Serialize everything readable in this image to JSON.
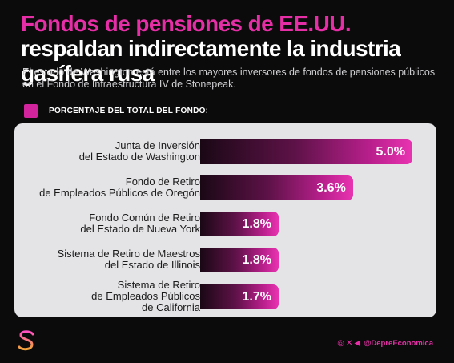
{
  "header": {
    "title_highlight": "Fondos de pensiones de EE.UU.",
    "title_rest": " respaldan indirectamente la industria gasífera rusa",
    "subtitle": "El estado de Washington está entre los mayores inversores de fondos de pensiones públicos en el Fondo de Infraestructura IV de Stonepeak."
  },
  "legend": {
    "label": "PORCENTAJE DEL TOTAL DEL FONDO:",
    "color": "#d2249d"
  },
  "chart_data": {
    "type": "bar",
    "orientation": "horizontal",
    "categories": [
      "Junta de Inversión\ndel Estado de Washington",
      "Fondo de Retiro\nde Empleados Públicos de Oregón",
      "Fondo Común de Retiro\ndel Estado de Nueva York",
      "Sistema de Retiro de Maestros\ndel Estado de Illinois",
      "Sistema de Retiro\nde Empleados Públicos\nde California"
    ],
    "values": [
      5.0,
      3.6,
      1.8,
      1.8,
      1.7
    ],
    "value_labels": [
      "5.0%",
      "3.6%",
      "1.8%",
      "1.8%",
      "1.7%"
    ],
    "xlim": [
      0,
      5.0
    ],
    "grid": false,
    "bar_gradient": [
      "#1a0815",
      "#e933b1"
    ],
    "panel_color": "#e4e4e7"
  },
  "footer": {
    "logo_icon": "dollar-sign-icon",
    "social_icons": [
      "instagram-icon",
      "x-icon",
      "telegram-icon"
    ],
    "handle": "@DepreEconomica",
    "accent": "#e62fa6"
  }
}
